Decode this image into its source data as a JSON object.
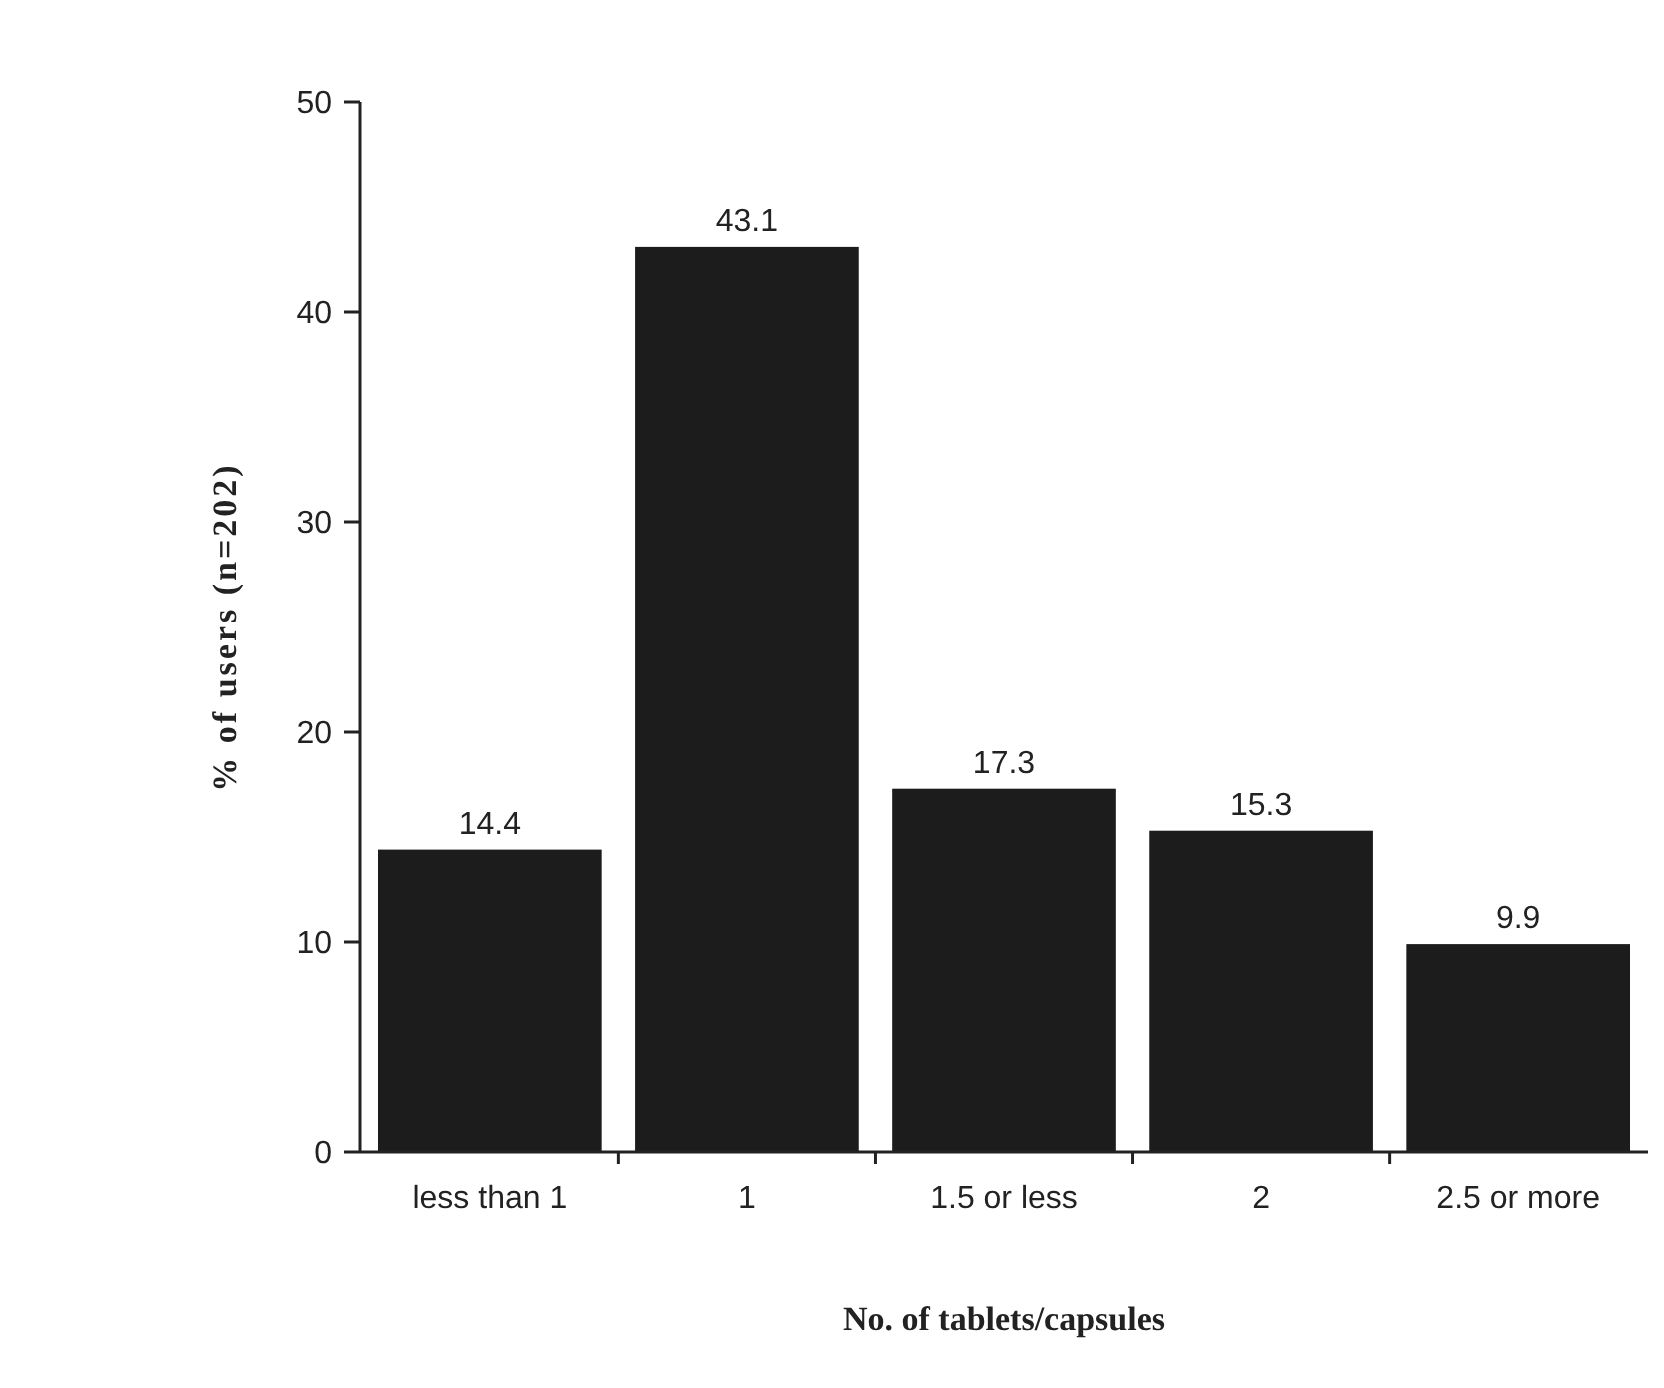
{
  "chart_data": {
    "type": "bar",
    "xlabel": "No. of tablets/capsules",
    "ylabel": "% of users (n=202)",
    "categories": [
      "less than 1",
      "1",
      "1.5 or less",
      "2",
      "2.5 or more"
    ],
    "values": [
      14.4,
      43.1,
      17.3,
      15.3,
      9.9
    ],
    "color": "#1c1c1c",
    "ylim": [
      0,
      50
    ],
    "yticks": [
      0,
      10,
      20,
      30,
      40,
      50
    ],
    "data_labels": true,
    "grid": false
  }
}
